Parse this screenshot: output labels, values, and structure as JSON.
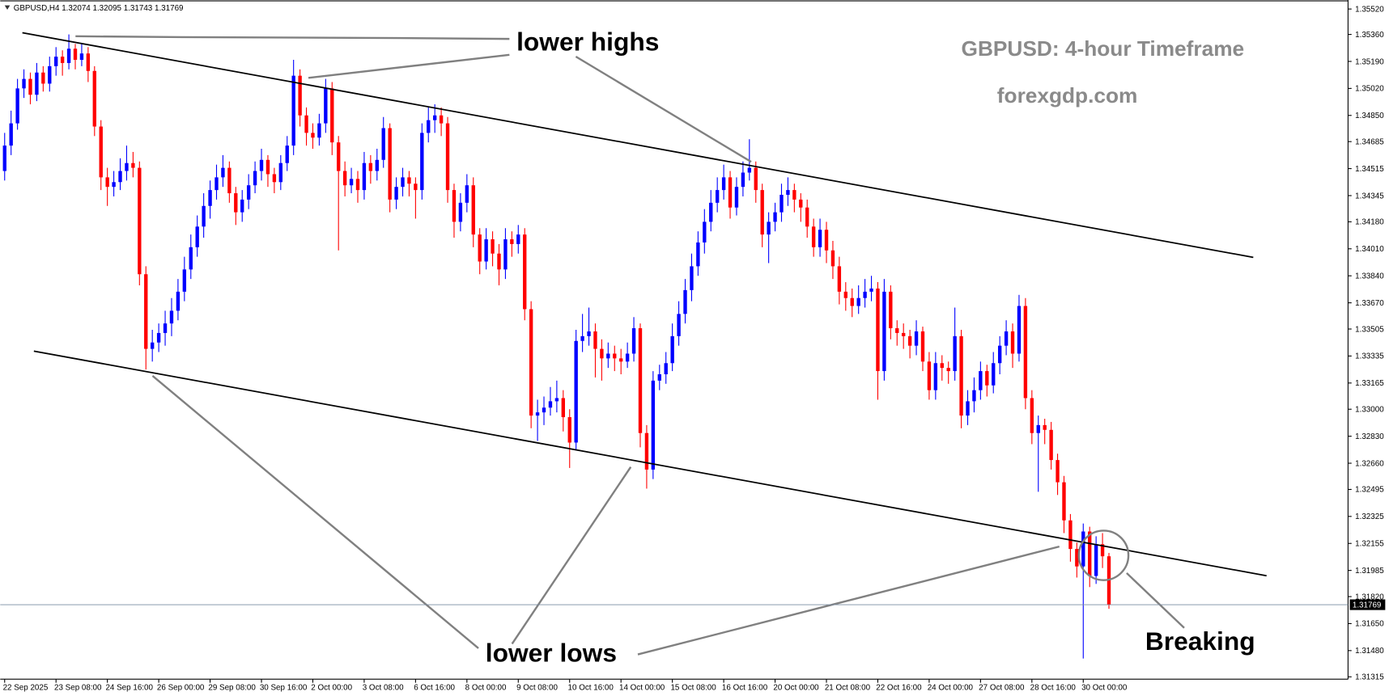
{
  "chart_data": {
    "type": "candlestick",
    "header": "GBPUSD,H4  1.32074 1.32095 1.31743 1.31769",
    "title": "GBPUSD: 4-hour Timeframe",
    "subtitle": "forexgdp.com",
    "annotations": [
      "lower highs",
      "lower lows",
      "Breaking"
    ],
    "up_color": "#0000ff",
    "down_color": "#ff0000",
    "ylim": [
      1.313,
      1.3556
    ],
    "yticks": [
      {
        "value": 1.3552,
        "label": "1.35520"
      },
      {
        "value": 1.3536,
        "label": "1.35360"
      },
      {
        "value": 1.3519,
        "label": "1.35190"
      },
      {
        "value": 1.3502,
        "label": "1.35020"
      },
      {
        "value": 1.3485,
        "label": "1.34850"
      },
      1.34685,
      1.34515,
      1.34345,
      {
        "value": 1.3418,
        "label": "1.34180"
      },
      {
        "value": 1.3401,
        "label": "1.34010"
      },
      {
        "value": 1.3384,
        "label": "1.33840"
      },
      {
        "value": 1.3367,
        "label": "1.33670"
      },
      1.33505,
      1.33335,
      1.33165,
      {
        "value": 1.33,
        "label": "1.33000"
      },
      {
        "value": 1.3283,
        "label": "1.32830"
      },
      {
        "value": 1.3266,
        "label": "1.32660"
      },
      1.32495,
      1.32325,
      1.32155,
      1.31985,
      {
        "value": 1.3182,
        "label": "1.31820"
      },
      {
        "value": 1.3165,
        "label": "1.31650"
      },
      {
        "value": 1.3148,
        "label": "1.31480"
      },
      1.31315
    ],
    "last_price": 1.31769,
    "categories": [
      "22 Sep 2025",
      null,
      null,
      null,
      null,
      null,
      null,
      null,
      "23 Sep 08:00",
      null,
      null,
      null,
      null,
      null,
      null,
      null,
      "24 Sep 16:00",
      null,
      null,
      null,
      null,
      null,
      null,
      null,
      "26 Sep 00:00",
      null,
      null,
      null,
      null,
      null,
      null,
      null,
      "29 Sep 08:00",
      null,
      null,
      null,
      null,
      null,
      null,
      null,
      "30 Sep 16:00",
      null,
      null,
      null,
      null,
      null,
      null,
      null,
      "2 Oct 00:00",
      null,
      null,
      null,
      null,
      null,
      null,
      null,
      "3 Oct 08:00",
      null,
      null,
      null,
      null,
      null,
      null,
      null,
      "6 Oct 16:00",
      null,
      null,
      null,
      null,
      null,
      null,
      null,
      "8 Oct 00:00",
      null,
      null,
      null,
      null,
      null,
      null,
      null,
      "9 Oct 08:00",
      null,
      null,
      null,
      null,
      null,
      null,
      null,
      "10 Oct 16:00",
      null,
      null,
      null,
      null,
      null,
      null,
      null,
      "14 Oct 00:00",
      null,
      null,
      null,
      null,
      null,
      null,
      null,
      "15 Oct 08:00",
      null,
      null,
      null,
      null,
      null,
      null,
      null,
      "16 Oct 16:00",
      null,
      null,
      null,
      null,
      null,
      null,
      null,
      "20 Oct 00:00",
      null,
      null,
      null,
      null,
      null,
      null,
      null,
      "21 Oct 08:00",
      null,
      null,
      null,
      null,
      null,
      null,
      null,
      "22 Oct 16:00",
      null,
      null,
      null,
      null,
      null,
      null,
      null,
      "24 Oct 00:00",
      null,
      null,
      null,
      null,
      null,
      null,
      null,
      "27 Oct 08:00",
      null,
      null,
      null,
      null,
      null,
      null,
      null,
      "28 Oct 16:00",
      null,
      null,
      null,
      null,
      null,
      null,
      null,
      "30 Oct 00:00",
      null,
      null,
      null,
      null
    ],
    "ohlc": [
      [
        1.345,
        1.3474,
        1.3444,
        1.3466
      ],
      [
        1.3466,
        1.3488,
        1.346,
        1.348
      ],
      [
        1.348,
        1.3508,
        1.3476,
        1.3502
      ],
      [
        1.3502,
        1.3514,
        1.3496,
        1.3508
      ],
      [
        1.3508,
        1.3512,
        1.3492,
        1.3498
      ],
      [
        1.3498,
        1.3518,
        1.3494,
        1.3512
      ],
      [
        1.3512,
        1.3516,
        1.35,
        1.3505
      ],
      [
        1.3505,
        1.3522,
        1.35,
        1.3516
      ],
      [
        1.3516,
        1.3528,
        1.351,
        1.3522
      ],
      [
        1.3522,
        1.3526,
        1.351,
        1.3518
      ],
      [
        1.3518,
        1.3536,
        1.3514,
        1.3527
      ],
      [
        1.3527,
        1.353,
        1.3514,
        1.352
      ],
      [
        1.352,
        1.353,
        1.3516,
        1.3524
      ],
      [
        1.3524,
        1.3528,
        1.3506,
        1.3513
      ],
      [
        1.3513,
        1.3516,
        1.3472,
        1.3478
      ],
      [
        1.3478,
        1.3482,
        1.3438,
        1.3446
      ],
      [
        1.3446,
        1.3452,
        1.3428,
        1.344
      ],
      [
        1.344,
        1.345,
        1.3434,
        1.3443
      ],
      [
        1.3443,
        1.3458,
        1.3438,
        1.345
      ],
      [
        1.345,
        1.3466,
        1.3444,
        1.3455
      ],
      [
        1.3455,
        1.3462,
        1.3446,
        1.3452
      ],
      [
        1.3452,
        1.3456,
        1.3378,
        1.3385
      ],
      [
        1.3385,
        1.339,
        1.3325,
        1.3338
      ],
      [
        1.3338,
        1.335,
        1.333,
        1.3342
      ],
      [
        1.3342,
        1.3354,
        1.3336,
        1.3348
      ],
      [
        1.3348,
        1.3362,
        1.334,
        1.3354
      ],
      [
        1.3354,
        1.337,
        1.3346,
        1.3362
      ],
      [
        1.3362,
        1.3382,
        1.3356,
        1.3374
      ],
      [
        1.3374,
        1.3396,
        1.3368,
        1.3388
      ],
      [
        1.3388,
        1.341,
        1.3382,
        1.3402
      ],
      [
        1.3402,
        1.3422,
        1.3396,
        1.3415
      ],
      [
        1.3415,
        1.3436,
        1.3408,
        1.3428
      ],
      [
        1.3428,
        1.3444,
        1.342,
        1.3438
      ],
      [
        1.3438,
        1.3454,
        1.3432,
        1.3446
      ],
      [
        1.3446,
        1.346,
        1.344,
        1.3452
      ],
      [
        1.3452,
        1.3456,
        1.343,
        1.3436
      ],
      [
        1.3436,
        1.344,
        1.3416,
        1.3424
      ],
      [
        1.3424,
        1.3438,
        1.3418,
        1.3432
      ],
      [
        1.3432,
        1.3448,
        1.3426,
        1.3441
      ],
      [
        1.3441,
        1.3456,
        1.3436,
        1.345
      ],
      [
        1.345,
        1.3464,
        1.3444,
        1.3457
      ],
      [
        1.3457,
        1.346,
        1.344,
        1.3448
      ],
      [
        1.3448,
        1.3452,
        1.3436,
        1.3443
      ],
      [
        1.3443,
        1.346,
        1.3438,
        1.3455
      ],
      [
        1.3455,
        1.3472,
        1.345,
        1.3466
      ],
      [
        1.3466,
        1.352,
        1.346,
        1.351
      ],
      [
        1.351,
        1.3514,
        1.3478,
        1.3485
      ],
      [
        1.3485,
        1.349,
        1.3466,
        1.3474
      ],
      [
        1.3474,
        1.348,
        1.3464,
        1.3471
      ],
      [
        1.3471,
        1.3486,
        1.3466,
        1.348
      ],
      [
        1.348,
        1.3508,
        1.3474,
        1.3502
      ],
      [
        1.3502,
        1.3506,
        1.346,
        1.3468
      ],
      [
        1.3468,
        1.3472,
        1.34,
        1.345
      ],
      [
        1.345,
        1.3456,
        1.3434,
        1.3441
      ],
      [
        1.3441,
        1.3452,
        1.3436,
        1.3445
      ],
      [
        1.3445,
        1.345,
        1.343,
        1.3438
      ],
      [
        1.3438,
        1.3462,
        1.3432,
        1.3455
      ],
      [
        1.3455,
        1.346,
        1.3442,
        1.345
      ],
      [
        1.345,
        1.3464,
        1.3444,
        1.3457
      ],
      [
        1.3457,
        1.3484,
        1.3452,
        1.3477
      ],
      [
        1.3477,
        1.348,
        1.3424,
        1.3432
      ],
      [
        1.3432,
        1.3446,
        1.3426,
        1.344
      ],
      [
        1.344,
        1.3452,
        1.3434,
        1.3446
      ],
      [
        1.3446,
        1.345,
        1.3434,
        1.3442
      ],
      [
        1.3442,
        1.3446,
        1.342,
        1.3438
      ],
      [
        1.3438,
        1.348,
        1.3432,
        1.3474
      ],
      [
        1.3474,
        1.349,
        1.3468,
        1.3482
      ],
      [
        1.3482,
        1.3492,
        1.3474,
        1.3485
      ],
      [
        1.3485,
        1.349,
        1.3472,
        1.348
      ],
      [
        1.348,
        1.3484,
        1.343,
        1.3438
      ],
      [
        1.3438,
        1.3442,
        1.3408,
        1.3418
      ],
      [
        1.3418,
        1.3436,
        1.3412,
        1.343
      ],
      [
        1.343,
        1.3448,
        1.3424,
        1.3441
      ],
      [
        1.3441,
        1.3446,
        1.3402,
        1.341
      ],
      [
        1.341,
        1.3414,
        1.3385,
        1.3393
      ],
      [
        1.3393,
        1.3414,
        1.3388,
        1.3407
      ],
      [
        1.3407,
        1.3412,
        1.339,
        1.3398
      ],
      [
        1.3398,
        1.3404,
        1.3378,
        1.3388
      ],
      [
        1.3388,
        1.3414,
        1.3382,
        1.3407
      ],
      [
        1.3407,
        1.3412,
        1.3396,
        1.3404
      ],
      [
        1.3404,
        1.3416,
        1.3398,
        1.341
      ],
      [
        1.341,
        1.3414,
        1.3356,
        1.3363
      ],
      [
        1.3363,
        1.3368,
        1.3288,
        1.3296
      ],
      [
        1.3296,
        1.3306,
        1.328,
        1.3298
      ],
      [
        1.3298,
        1.3308,
        1.329,
        1.3301
      ],
      [
        1.3301,
        1.3314,
        1.3296,
        1.3305
      ],
      [
        1.3305,
        1.3318,
        1.3298,
        1.3307
      ],
      [
        1.3307,
        1.3312,
        1.3286,
        1.3295
      ],
      [
        1.3295,
        1.33,
        1.3263,
        1.3279
      ],
      [
        1.3279,
        1.335,
        1.3274,
        1.3343
      ],
      [
        1.3343,
        1.336,
        1.3336,
        1.3346
      ],
      [
        1.3346,
        1.3364,
        1.334,
        1.3349
      ],
      [
        1.3349,
        1.3354,
        1.332,
        1.3338
      ],
      [
        1.3338,
        1.3344,
        1.3318,
        1.3332
      ],
      [
        1.3332,
        1.3342,
        1.3326,
        1.3335
      ],
      [
        1.3335,
        1.334,
        1.3324,
        1.3332
      ],
      [
        1.3332,
        1.3338,
        1.3322,
        1.333
      ],
      [
        1.333,
        1.3342,
        1.3326,
        1.3335
      ],
      [
        1.3335,
        1.3358,
        1.333,
        1.3351
      ],
      [
        1.3351,
        1.3354,
        1.3276,
        1.3285
      ],
      [
        1.3285,
        1.329,
        1.325,
        1.3262
      ],
      [
        1.3262,
        1.3324,
        1.3256,
        1.3318
      ],
      [
        1.3318,
        1.3328,
        1.3312,
        1.3322
      ],
      [
        1.3322,
        1.3336,
        1.3316,
        1.3329
      ],
      [
        1.3329,
        1.3354,
        1.3324,
        1.3346
      ],
      [
        1.3346,
        1.3368,
        1.334,
        1.336
      ],
      [
        1.336,
        1.3382,
        1.3354,
        1.3375
      ],
      [
        1.3375,
        1.3398,
        1.3368,
        1.339
      ],
      [
        1.339,
        1.3412,
        1.3384,
        1.3405
      ],
      [
        1.3405,
        1.3426,
        1.3398,
        1.3418
      ],
      [
        1.3418,
        1.3438,
        1.3412,
        1.343
      ],
      [
        1.343,
        1.3446,
        1.3424,
        1.3438
      ],
      [
        1.3438,
        1.3454,
        1.3432,
        1.3446
      ],
      [
        1.3446,
        1.345,
        1.342,
        1.3427
      ],
      [
        1.3427,
        1.3446,
        1.3422,
        1.344
      ],
      [
        1.344,
        1.3456,
        1.3434,
        1.3449
      ],
      [
        1.3449,
        1.347,
        1.3444,
        1.3452
      ],
      [
        1.3452,
        1.3456,
        1.343,
        1.3438
      ],
      [
        1.3438,
        1.3442,
        1.3402,
        1.341
      ],
      [
        1.341,
        1.3424,
        1.3392,
        1.3418
      ],
      [
        1.3418,
        1.343,
        1.3412,
        1.3424
      ],
      [
        1.3424,
        1.3442,
        1.3418,
        1.3435
      ],
      [
        1.3435,
        1.3446,
        1.3428,
        1.3438
      ],
      [
        1.3438,
        1.3442,
        1.3424,
        1.3432
      ],
      [
        1.3432,
        1.3436,
        1.3418,
        1.3427
      ],
      [
        1.3427,
        1.3432,
        1.3408,
        1.3415
      ],
      [
        1.3415,
        1.342,
        1.3396,
        1.3402
      ],
      [
        1.3402,
        1.342,
        1.3396,
        1.3413
      ],
      [
        1.3413,
        1.3418,
        1.3392,
        1.34
      ],
      [
        1.34,
        1.3406,
        1.3382,
        1.339
      ],
      [
        1.339,
        1.3396,
        1.3366,
        1.3374
      ],
      [
        1.3374,
        1.338,
        1.3362,
        1.337
      ],
      [
        1.337,
        1.3376,
        1.3358,
        1.3365
      ],
      [
        1.3365,
        1.3378,
        1.336,
        1.337
      ],
      [
        1.337,
        1.3382,
        1.3364,
        1.3374
      ],
      [
        1.3374,
        1.3384,
        1.3368,
        1.3376
      ],
      [
        1.3376,
        1.338,
        1.3306,
        1.3324
      ],
      [
        1.3324,
        1.3382,
        1.3318,
        1.3374
      ],
      [
        1.3374,
        1.3378,
        1.3344,
        1.3351
      ],
      [
        1.3351,
        1.3356,
        1.334,
        1.3348
      ],
      [
        1.3348,
        1.3354,
        1.3338,
        1.3346
      ],
      [
        1.3346,
        1.335,
        1.3332,
        1.334
      ],
      [
        1.334,
        1.3356,
        1.3334,
        1.3349
      ],
      [
        1.3349,
        1.3352,
        1.3324,
        1.333
      ],
      [
        1.333,
        1.3336,
        1.3306,
        1.3312
      ],
      [
        1.3312,
        1.3336,
        1.3306,
        1.3329
      ],
      [
        1.3329,
        1.3334,
        1.3318,
        1.3326
      ],
      [
        1.3326,
        1.333,
        1.3316,
        1.3324
      ],
      [
        1.3324,
        1.3364,
        1.3318,
        1.3346
      ],
      [
        1.3346,
        1.335,
        1.3288,
        1.3296
      ],
      [
        1.3296,
        1.3312,
        1.329,
        1.3305
      ],
      [
        1.3305,
        1.332,
        1.3298,
        1.3312
      ],
      [
        1.3312,
        1.333,
        1.3306,
        1.3324
      ],
      [
        1.3324,
        1.3328,
        1.3308,
        1.3315
      ],
      [
        1.3315,
        1.3336,
        1.331,
        1.3329
      ],
      [
        1.3329,
        1.3346,
        1.3322,
        1.334
      ],
      [
        1.334,
        1.3356,
        1.3334,
        1.3349
      ],
      [
        1.3349,
        1.3354,
        1.3326,
        1.3335
      ],
      [
        1.3335,
        1.3372,
        1.333,
        1.3365
      ],
      [
        1.3365,
        1.337,
        1.33,
        1.3307
      ],
      [
        1.3307,
        1.3312,
        1.3278,
        1.3285
      ],
      [
        1.3285,
        1.3296,
        1.3248,
        1.329
      ],
      [
        1.329,
        1.3294,
        1.3278,
        1.3287
      ],
      [
        1.3287,
        1.3292,
        1.3262,
        1.3268
      ],
      [
        1.3268,
        1.3272,
        1.3246,
        1.3254
      ],
      [
        1.3254,
        1.3258,
        1.3222,
        1.323
      ],
      [
        1.323,
        1.3234,
        1.3204,
        1.3212
      ],
      [
        1.3212,
        1.3216,
        1.3194,
        1.3201
      ],
      [
        1.3201,
        1.3228,
        1.3143,
        1.3223
      ],
      [
        1.3223,
        1.3226,
        1.3188,
        1.3195
      ],
      [
        1.3195,
        1.322,
        1.319,
        1.3215
      ],
      [
        1.3215,
        1.3222,
        1.32,
        1.32074
      ],
      [
        1.32074,
        1.32095,
        1.31743,
        1.31769
      ]
    ]
  }
}
